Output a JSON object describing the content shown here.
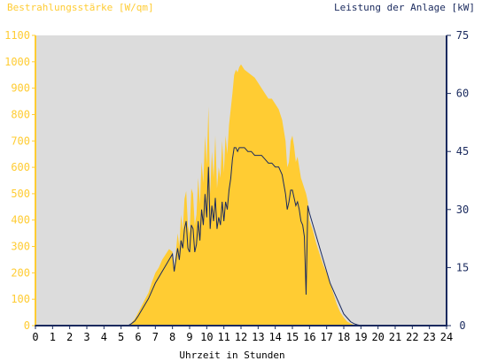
{
  "chart_data": {
    "type": "area",
    "left_axis_title": "Bestrahlungsstärke [W/qm]",
    "right_axis_title": "Leistung der Anlage [kW]",
    "xlabel": "Uhrzeit in Stunden",
    "xlim": [
      0,
      24
    ],
    "ylim_left": [
      0,
      1100
    ],
    "ylim_right": [
      0,
      75
    ],
    "x_ticks": [
      "0",
      "1",
      "2",
      "3",
      "4",
      "5",
      "6",
      "7",
      "8",
      "9",
      "10",
      "11",
      "12",
      "13",
      "14",
      "15",
      "16",
      "17",
      "18",
      "19",
      "20",
      "21",
      "22",
      "23",
      "24"
    ],
    "y_left_ticks": [
      "0",
      "100",
      "200",
      "300",
      "400",
      "500",
      "600",
      "700",
      "800",
      "900",
      "1000",
      "1100"
    ],
    "y_right_ticks": [
      "0",
      "15",
      "30",
      "45",
      "60",
      "75"
    ],
    "grid": false,
    "colors": {
      "irradiance": "#ffcc33",
      "power": "#1a2a5e",
      "plot_bg": "#dcdcdc",
      "left_axis": "#ffcc33",
      "right_axis": "#1a2a5e"
    },
    "series": [
      {
        "axis": "left",
        "style": "area",
        "x": [
          0,
          5.4,
          5.6,
          5.8,
          6.0,
          6.2,
          6.4,
          6.6,
          6.8,
          7.0,
          7.2,
          7.4,
          7.6,
          7.8,
          8.0,
          8.1,
          8.2,
          8.3,
          8.4,
          8.5,
          8.6,
          8.7,
          8.8,
          8.9,
          9.0,
          9.1,
          9.2,
          9.3,
          9.4,
          9.5,
          9.6,
          9.7,
          9.8,
          9.9,
          10.0,
          10.1,
          10.2,
          10.3,
          10.4,
          10.5,
          10.6,
          10.7,
          10.8,
          10.9,
          11.0,
          11.1,
          11.2,
          11.3,
          11.4,
          11.5,
          11.6,
          11.7,
          11.8,
          11.9,
          12.0,
          12.2,
          12.4,
          12.6,
          12.8,
          13.0,
          13.2,
          13.4,
          13.6,
          13.8,
          14.0,
          14.2,
          14.4,
          14.6,
          14.7,
          14.8,
          14.9,
          15.0,
          15.1,
          15.2,
          15.3,
          15.4,
          15.5,
          15.6,
          15.7,
          15.8,
          15.9,
          16.0,
          16.2,
          16.4,
          16.6,
          16.8,
          17.0,
          17.2,
          17.4,
          17.6,
          17.8,
          18.0,
          18.2,
          18.4,
          18.6,
          18.8,
          19.0,
          19.2,
          19.4,
          19.6,
          20,
          24
        ],
        "y": [
          0,
          0,
          10,
          25,
          50,
          75,
          100,
          125,
          165,
          200,
          220,
          250,
          270,
          290,
          280,
          220,
          280,
          350,
          300,
          420,
          360,
          480,
          510,
          380,
          350,
          520,
          500,
          380,
          420,
          560,
          460,
          620,
          540,
          720,
          610,
          830,
          500,
          660,
          560,
          720,
          520,
          600,
          560,
          700,
          580,
          720,
          650,
          760,
          820,
          880,
          950,
          970,
          960,
          980,
          990,
          970,
          960,
          950,
          940,
          920,
          900,
          880,
          860,
          860,
          840,
          820,
          780,
          700,
          600,
          620,
          700,
          720,
          680,
          620,
          640,
          600,
          560,
          540,
          520,
          500,
          470,
          400,
          360,
          310,
          270,
          230,
          200,
          160,
          120,
          80,
          50,
          30,
          15,
          8,
          3,
          0,
          0,
          0,
          0,
          0,
          0,
          0
        ]
      },
      {
        "axis": "right",
        "style": "line",
        "x": [
          0,
          5.4,
          5.6,
          5.8,
          6.0,
          6.2,
          6.4,
          6.6,
          6.8,
          7.0,
          7.2,
          7.4,
          7.6,
          7.8,
          8.0,
          8.1,
          8.2,
          8.3,
          8.4,
          8.5,
          8.6,
          8.7,
          8.8,
          8.9,
          9.0,
          9.1,
          9.2,
          9.3,
          9.4,
          9.5,
          9.6,
          9.7,
          9.8,
          9.9,
          10.0,
          10.1,
          10.2,
          10.3,
          10.4,
          10.5,
          10.6,
          10.7,
          10.8,
          10.9,
          11.0,
          11.1,
          11.2,
          11.3,
          11.4,
          11.5,
          11.6,
          11.7,
          11.8,
          11.9,
          12.0,
          12.2,
          12.4,
          12.6,
          12.8,
          13.0,
          13.2,
          13.4,
          13.6,
          13.8,
          14.0,
          14.2,
          14.4,
          14.6,
          14.7,
          14.8,
          14.9,
          15.0,
          15.1,
          15.2,
          15.3,
          15.4,
          15.5,
          15.6,
          15.7,
          15.8,
          15.9,
          16.0,
          16.2,
          16.4,
          16.6,
          16.8,
          17.0,
          17.2,
          17.4,
          17.6,
          17.8,
          18.0,
          18.2,
          18.4,
          18.6,
          18.8,
          19.0,
          19.2,
          19.4,
          19.6,
          20,
          24
        ],
        "y": [
          0,
          0,
          0.5,
          1.2,
          2.5,
          4,
          5.5,
          7,
          9,
          11,
          12.5,
          14,
          15.5,
          17,
          18.5,
          14,
          17,
          20,
          17,
          22,
          20,
          25,
          27,
          20,
          19,
          26,
          25,
          19,
          21,
          27,
          22,
          30,
          26,
          34,
          28,
          41,
          25,
          31,
          27,
          33,
          25,
          28,
          26,
          32,
          27,
          32,
          30,
          35,
          38,
          43,
          46,
          46,
          45,
          46,
          46,
          46,
          45,
          45,
          44,
          44,
          44,
          43,
          42,
          42,
          41,
          41,
          39,
          34,
          30,
          32,
          35,
          35,
          33,
          31,
          32,
          30,
          27,
          26,
          23,
          8,
          31,
          29,
          26,
          23,
          20,
          17,
          14,
          11,
          9,
          7,
          5,
          3,
          2,
          1,
          0.5,
          0.2,
          0,
          0,
          0,
          0,
          0,
          0
        ]
      }
    ]
  }
}
